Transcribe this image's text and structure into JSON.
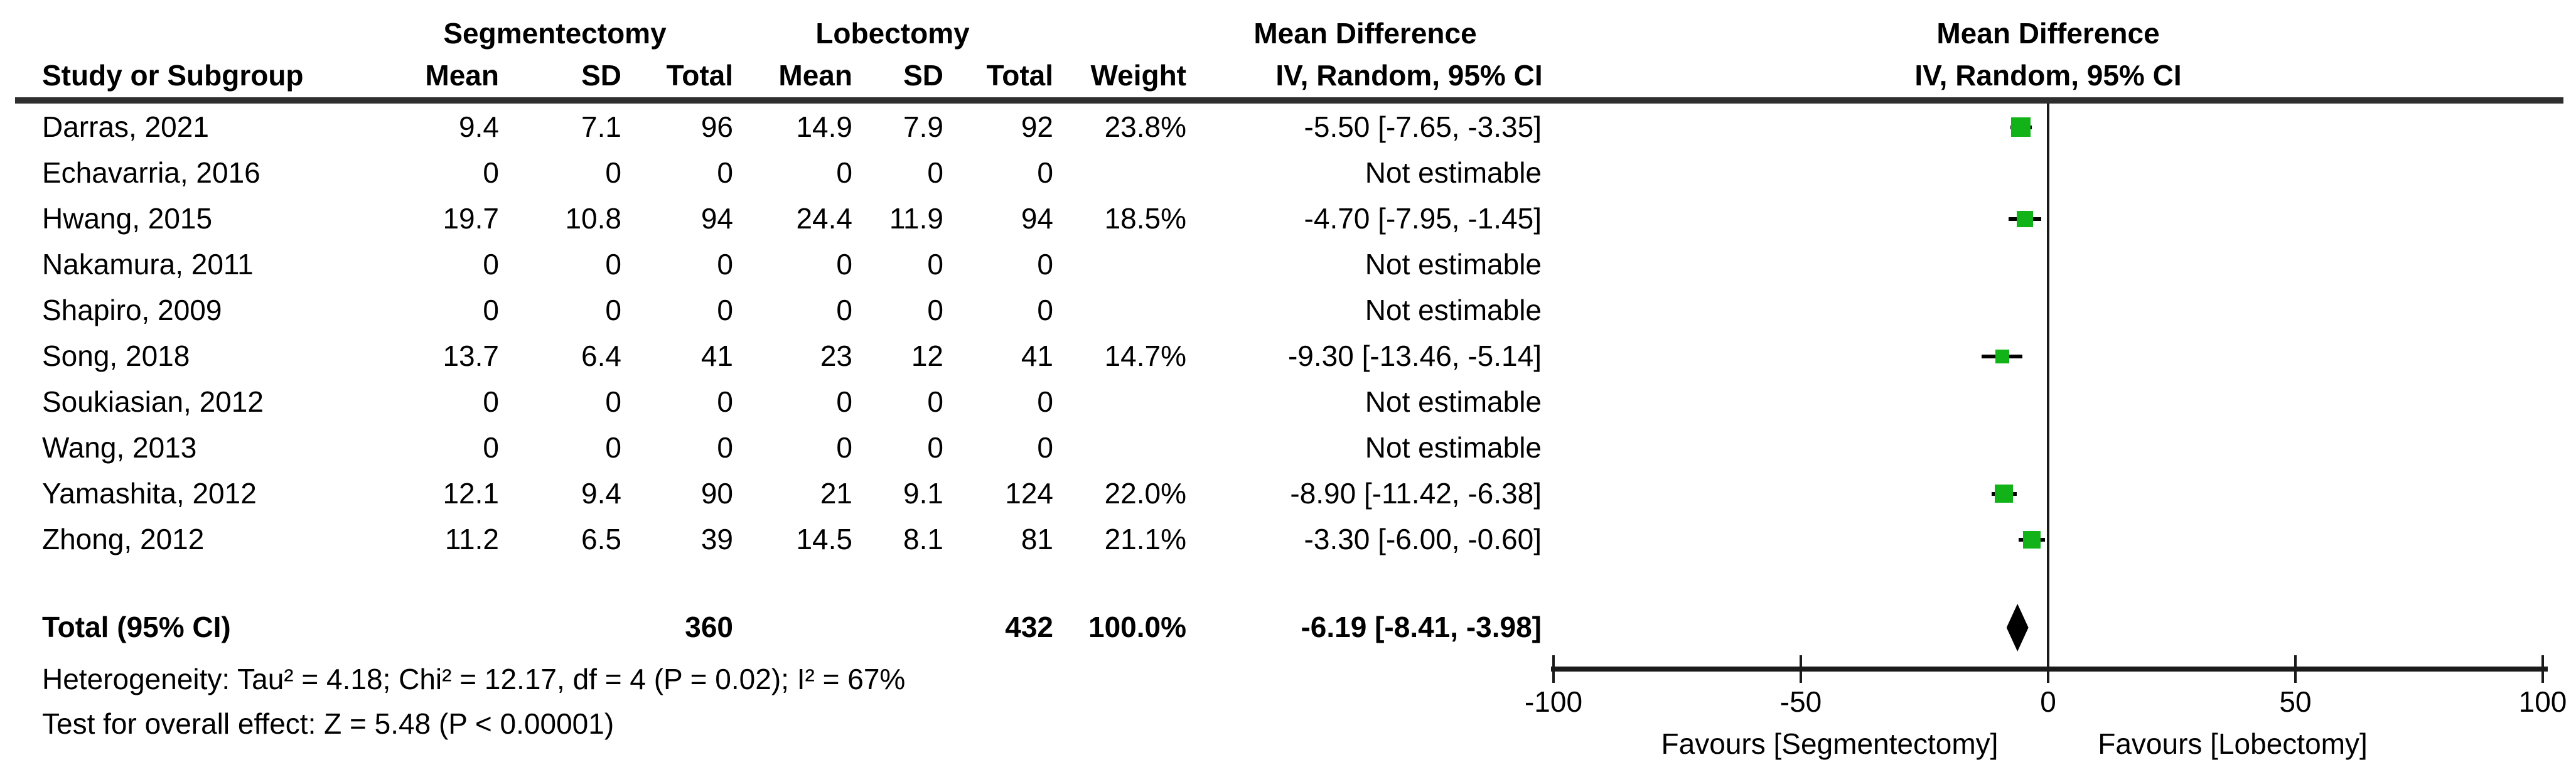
{
  "headers": {
    "group_seg": "Segmentectomy",
    "group_lob": "Lobectomy",
    "md": "Mean Difference",
    "study": "Study or Subgroup",
    "mean": "Mean",
    "sd": "SD",
    "total": "Total",
    "weight": "Weight",
    "iv": "IV, Random, 95% CI"
  },
  "studies": [
    {
      "name": "Darras, 2021",
      "seg_mean": "9.4",
      "seg_sd": "7.1",
      "seg_total": "96",
      "lob_mean": "14.9",
      "lob_sd": "7.9",
      "lob_total": "92",
      "weight": "23.8%",
      "md_ci": "-5.50 [-7.65, -3.35]",
      "md": -5.5,
      "lo": -7.65,
      "hi": -3.35,
      "weight_val": 23.8
    },
    {
      "name": "Echavarria, 2016",
      "seg_mean": "0",
      "seg_sd": "0",
      "seg_total": "0",
      "lob_mean": "0",
      "lob_sd": "0",
      "lob_total": "0",
      "weight": "",
      "md_ci": "Not estimable",
      "md": null,
      "lo": null,
      "hi": null,
      "weight_val": null
    },
    {
      "name": "Hwang, 2015",
      "seg_mean": "19.7",
      "seg_sd": "10.8",
      "seg_total": "94",
      "lob_mean": "24.4",
      "lob_sd": "11.9",
      "lob_total": "94",
      "weight": "18.5%",
      "md_ci": "-4.70 [-7.95, -1.45]",
      "md": -4.7,
      "lo": -7.95,
      "hi": -1.45,
      "weight_val": 18.5
    },
    {
      "name": "Nakamura, 2011",
      "seg_mean": "0",
      "seg_sd": "0",
      "seg_total": "0",
      "lob_mean": "0",
      "lob_sd": "0",
      "lob_total": "0",
      "weight": "",
      "md_ci": "Not estimable",
      "md": null,
      "lo": null,
      "hi": null,
      "weight_val": null
    },
    {
      "name": "Shapiro, 2009",
      "seg_mean": "0",
      "seg_sd": "0",
      "seg_total": "0",
      "lob_mean": "0",
      "lob_sd": "0",
      "lob_total": "0",
      "weight": "",
      "md_ci": "Not estimable",
      "md": null,
      "lo": null,
      "hi": null,
      "weight_val": null
    },
    {
      "name": "Song, 2018",
      "seg_mean": "13.7",
      "seg_sd": "6.4",
      "seg_total": "41",
      "lob_mean": "23",
      "lob_sd": "12",
      "lob_total": "41",
      "weight": "14.7%",
      "md_ci": "-9.30 [-13.46, -5.14]",
      "md": -9.3,
      "lo": -13.46,
      "hi": -5.14,
      "weight_val": 14.7
    },
    {
      "name": "Soukiasian, 2012",
      "seg_mean": "0",
      "seg_sd": "0",
      "seg_total": "0",
      "lob_mean": "0",
      "lob_sd": "0",
      "lob_total": "0",
      "weight": "",
      "md_ci": "Not estimable",
      "md": null,
      "lo": null,
      "hi": null,
      "weight_val": null
    },
    {
      "name": "Wang, 2013",
      "seg_mean": "0",
      "seg_sd": "0",
      "seg_total": "0",
      "lob_mean": "0",
      "lob_sd": "0",
      "lob_total": "0",
      "weight": "",
      "md_ci": "Not estimable",
      "md": null,
      "lo": null,
      "hi": null,
      "weight_val": null
    },
    {
      "name": "Yamashita, 2012",
      "seg_mean": "12.1",
      "seg_sd": "9.4",
      "seg_total": "90",
      "lob_mean": "21",
      "lob_sd": "9.1",
      "lob_total": "124",
      "weight": "22.0%",
      "md_ci": "-8.90 [-11.42, -6.38]",
      "md": -8.9,
      "lo": -11.42,
      "hi": -6.38,
      "weight_val": 22.0
    },
    {
      "name": "Zhong, 2012",
      "seg_mean": "11.2",
      "seg_sd": "6.5",
      "seg_total": "39",
      "lob_mean": "14.5",
      "lob_sd": "8.1",
      "lob_total": "81",
      "weight": "21.1%",
      "md_ci": "-3.30 [-6.00, -0.60]",
      "md": -3.3,
      "lo": -6.0,
      "hi": -0.6,
      "weight_val": 21.1
    }
  ],
  "total": {
    "label": "Total (95% CI)",
    "seg_total": "360",
    "lob_total": "432",
    "weight": "100.0%",
    "md_ci": "-6.19 [-8.41, -3.98]",
    "md": -6.19,
    "lo": -8.41,
    "hi": -3.98
  },
  "footnotes": {
    "heterogeneity": "Heterogeneity: Tau² = 4.18; Chi² = 12.17, df = 4 (P = 0.02); I² = 67%",
    "overall_effect": "Test for overall effect: Z = 5.48 (P < 0.00001)"
  },
  "axis": {
    "min": -100,
    "max": 100,
    "ticks": [
      -100,
      -50,
      0,
      50,
      100
    ],
    "tick_labels": [
      "-100",
      "-50",
      "0",
      "50",
      "100"
    ],
    "favours_left": "Favours [Segmentectomy]",
    "favours_right": "Favours [Lobectomy]"
  },
  "colors": {
    "marker_green": "#12B318",
    "line_black": "#1a1a1a",
    "diamond_black": "#000000"
  },
  "chart_data": {
    "type": "scatter",
    "subtype": "forest_plot",
    "effect_measure": "Mean Difference",
    "model": "IV, Random, 95% CI",
    "comparison_groups": [
      "Segmentectomy",
      "Lobectomy"
    ],
    "x_axis": {
      "min": -100,
      "max": 100,
      "ticks": [
        -100,
        -50,
        0,
        50,
        100
      ],
      "label_left": "Favours [Segmentectomy]",
      "label_right": "Favours [Lobectomy]"
    },
    "studies": [
      {
        "name": "Darras, 2021",
        "md": -5.5,
        "ci": [
          -7.65,
          -3.35
        ],
        "weight_pct": 23.8,
        "seg": {
          "mean": 9.4,
          "sd": 7.1,
          "n": 96
        },
        "lob": {
          "mean": 14.9,
          "sd": 7.9,
          "n": 92
        }
      },
      {
        "name": "Echavarria, 2016",
        "md": null,
        "ci": null,
        "weight_pct": null,
        "seg": {
          "mean": 0,
          "sd": 0,
          "n": 0
        },
        "lob": {
          "mean": 0,
          "sd": 0,
          "n": 0
        },
        "note": "Not estimable"
      },
      {
        "name": "Hwang, 2015",
        "md": -4.7,
        "ci": [
          -7.95,
          -1.45
        ],
        "weight_pct": 18.5,
        "seg": {
          "mean": 19.7,
          "sd": 10.8,
          "n": 94
        },
        "lob": {
          "mean": 24.4,
          "sd": 11.9,
          "n": 94
        }
      },
      {
        "name": "Nakamura, 2011",
        "md": null,
        "ci": null,
        "weight_pct": null,
        "seg": {
          "mean": 0,
          "sd": 0,
          "n": 0
        },
        "lob": {
          "mean": 0,
          "sd": 0,
          "n": 0
        },
        "note": "Not estimable"
      },
      {
        "name": "Shapiro, 2009",
        "md": null,
        "ci": null,
        "weight_pct": null,
        "seg": {
          "mean": 0,
          "sd": 0,
          "n": 0
        },
        "lob": {
          "mean": 0,
          "sd": 0,
          "n": 0
        },
        "note": "Not estimable"
      },
      {
        "name": "Song, 2018",
        "md": -9.3,
        "ci": [
          -13.46,
          -5.14
        ],
        "weight_pct": 14.7,
        "seg": {
          "mean": 13.7,
          "sd": 6.4,
          "n": 41
        },
        "lob": {
          "mean": 23,
          "sd": 12,
          "n": 41
        }
      },
      {
        "name": "Soukiasian, 2012",
        "md": null,
        "ci": null,
        "weight_pct": null,
        "seg": {
          "mean": 0,
          "sd": 0,
          "n": 0
        },
        "lob": {
          "mean": 0,
          "sd": 0,
          "n": 0
        },
        "note": "Not estimable"
      },
      {
        "name": "Wang, 2013",
        "md": null,
        "ci": null,
        "weight_pct": null,
        "seg": {
          "mean": 0,
          "sd": 0,
          "n": 0
        },
        "lob": {
          "mean": 0,
          "sd": 0,
          "n": 0
        },
        "note": "Not estimable"
      },
      {
        "name": "Yamashita, 2012",
        "md": -8.9,
        "ci": [
          -11.42,
          -6.38
        ],
        "weight_pct": 22.0,
        "seg": {
          "mean": 12.1,
          "sd": 9.4,
          "n": 90
        },
        "lob": {
          "mean": 21,
          "sd": 9.1,
          "n": 124
        }
      },
      {
        "name": "Zhong, 2012",
        "md": -3.3,
        "ci": [
          -6.0,
          -0.6
        ],
        "weight_pct": 21.1,
        "seg": {
          "mean": 11.2,
          "sd": 6.5,
          "n": 39
        },
        "lob": {
          "mean": 14.5,
          "sd": 8.1,
          "n": 81
        }
      }
    ],
    "total": {
      "md": -6.19,
      "ci": [
        -8.41,
        -3.98
      ],
      "weight_pct": 100.0,
      "n_seg": 360,
      "n_lob": 432
    },
    "heterogeneity": {
      "tau2": 4.18,
      "chi2": 12.17,
      "df": 4,
      "p": 0.02,
      "i2_pct": 67
    },
    "overall_effect": {
      "z": 5.48,
      "p": "< 0.00001"
    }
  }
}
